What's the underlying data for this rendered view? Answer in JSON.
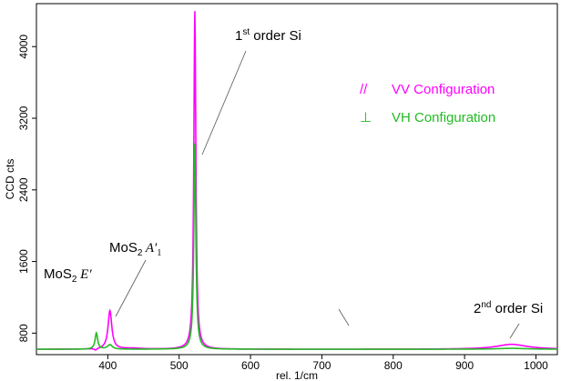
{
  "chart_data": {
    "type": "line",
    "xlabel": "rel. 1/cm",
    "ylabel": "CCD cts",
    "xlim": [
      300,
      1030
    ],
    "ylim": [
      560,
      4480
    ],
    "x_ticks": [
      400,
      500,
      600,
      700,
      800,
      900,
      1000
    ],
    "y_ticks": [
      800,
      1600,
      2400,
      3200,
      4000
    ],
    "grid": false,
    "legend_position": "top-right",
    "series": [
      {
        "name": "VV Configuration",
        "legend_symbol": "//",
        "color": "#ff00ff",
        "peaks": [
          {
            "x": 383,
            "height": 600,
            "width": 2.2
          },
          {
            "x": 403,
            "height": 1050,
            "width": 3.2
          },
          {
            "x": 435,
            "height": 630,
            "width": 14
          },
          {
            "x": 522,
            "height": 4395,
            "width": 1.7
          },
          {
            "x": 966,
            "height": 675,
            "width": 26
          }
        ],
        "baseline": 620
      },
      {
        "name": "VH Configuration",
        "legend_symbol": "⊥",
        "color": "#22bb22",
        "peaks": [
          {
            "x": 384,
            "height": 800,
            "width": 2.2
          },
          {
            "x": 403,
            "height": 670,
            "width": 4
          },
          {
            "x": 522,
            "height": 2920,
            "width": 1.7
          },
          {
            "x": 966,
            "height": 630,
            "width": 26
          }
        ],
        "baseline": 620
      }
    ],
    "annotations": [
      {
        "id": "mos2-e",
        "text_main": "MoS",
        "sub": "2",
        "text_tail": " E′",
        "x": 385,
        "y": 780
      },
      {
        "id": "mos2-a",
        "text_main": "MoS",
        "sub": "2",
        "text_tail": " A′",
        "tail_sub": "1",
        "x": 405,
        "y": 1050
      },
      {
        "id": "si-1st",
        "text_main": "1",
        "sup": "st",
        "text_tail": " order Si",
        "x": 522,
        "y": 3000
      },
      {
        "id": "si-2nd",
        "text_main": "2",
        "sup": "nd",
        "text_tail": " order Si",
        "x": 966,
        "y": 680
      }
    ]
  }
}
